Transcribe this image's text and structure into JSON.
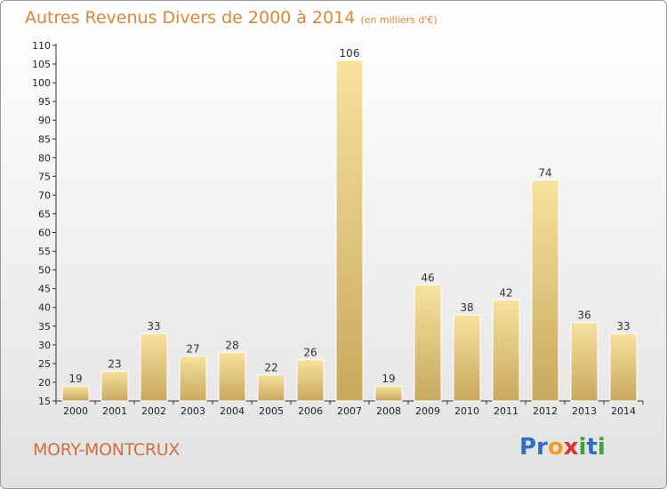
{
  "chart_data": {
    "type": "bar",
    "title": "Autres Revenus Divers de 2000 à 2014",
    "unit_note": "(en milliers d'€)",
    "categories": [
      "2000",
      "2001",
      "2002",
      "2003",
      "2004",
      "2005",
      "2006",
      "2007",
      "2008",
      "2009",
      "2010",
      "2011",
      "2012",
      "2013",
      "2014"
    ],
    "values": [
      19,
      23,
      33,
      27,
      28,
      22,
      26,
      106,
      19,
      46,
      38,
      42,
      74,
      36,
      33
    ],
    "ylim": [
      15,
      110
    ],
    "yticks": [
      15,
      20,
      25,
      30,
      35,
      40,
      45,
      50,
      55,
      60,
      65,
      70,
      75,
      80,
      85,
      90,
      95,
      100,
      105,
      110
    ],
    "grid": false,
    "colors": {
      "bar_light": "#f6df9a",
      "bar_dark": "#c9aa60",
      "title": "#d9863c"
    }
  },
  "footer": {
    "place": "MORY-MONTCRUX",
    "brand_parts": [
      {
        "text": "Pr",
        "color": "#2f6fc1"
      },
      {
        "text": "o",
        "color": "#f0a020"
      },
      {
        "text": "x",
        "color": "#e0342a"
      },
      {
        "text": "i",
        "color": "#3aa33a"
      },
      {
        "text": "t",
        "color": "#2f6fc1"
      },
      {
        "text": "i",
        "color": "#3aa33a"
      }
    ]
  }
}
